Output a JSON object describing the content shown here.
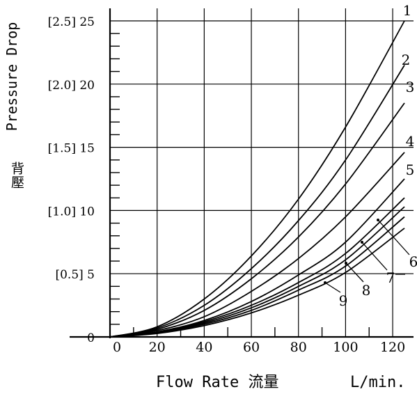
{
  "chart_data": {
    "type": "line",
    "ylabel": "Pressure Drop",
    "ylabel_cjk": "背壓",
    "xlabel": "Flow Rate 流量",
    "xunit": "L/min.",
    "xlim": [
      0,
      125
    ],
    "ylim": [
      0,
      25
    ],
    "xticks": [
      0,
      20,
      40,
      60,
      80,
      100,
      120
    ],
    "yticks": [
      {
        "value": 0,
        "label": "0"
      },
      {
        "value": 5,
        "label": "[0.5] 5"
      },
      {
        "value": 10,
        "label": "[1.0] 10"
      },
      {
        "value": 15,
        "label": "[1.5] 15"
      },
      {
        "value": 20,
        "label": "[2.0] 20"
      },
      {
        "value": 25,
        "label": "[2.5] 25"
      }
    ],
    "series": [
      {
        "name": "1",
        "x": [
          0,
          20,
          40,
          60,
          80,
          100,
          125
        ],
        "y": [
          0,
          0.8,
          3.0,
          6.4,
          10.9,
          16.6,
          25.0
        ]
      },
      {
        "name": "2",
        "x": [
          0,
          20,
          40,
          60,
          80,
          100,
          125
        ],
        "y": [
          0,
          0.7,
          2.5,
          5.4,
          9.2,
          14.0,
          21.5
        ]
      },
      {
        "name": "3",
        "x": [
          0,
          20,
          40,
          60,
          80,
          100,
          125
        ],
        "y": [
          0,
          0.6,
          2.1,
          4.6,
          7.9,
          12.1,
          18.5
        ]
      },
      {
        "name": "4",
        "x": [
          0,
          20,
          40,
          60,
          80,
          100,
          125
        ],
        "y": [
          0,
          0.5,
          1.6,
          3.6,
          6.2,
          9.5,
          14.6
        ]
      },
      {
        "name": "5",
        "x": [
          0,
          20,
          40,
          60,
          80,
          100,
          125
        ],
        "y": [
          0,
          0.4,
          1.3,
          2.8,
          4.9,
          7.5,
          12.5
        ]
      },
      {
        "name": "6",
        "x": [
          0,
          20,
          40,
          60,
          80,
          100,
          125
        ],
        "y": [
          0,
          0.36,
          1.2,
          2.5,
          4.3,
          6.6,
          11.0
        ]
      },
      {
        "name": "7",
        "x": [
          0,
          20,
          40,
          60,
          80,
          100,
          125
        ],
        "y": [
          0,
          0.33,
          1.1,
          2.3,
          4.0,
          6.1,
          10.3
        ]
      },
      {
        "name": "8",
        "x": [
          0,
          20,
          40,
          60,
          80,
          100,
          125
        ],
        "y": [
          0,
          0.3,
          1.0,
          2.1,
          3.7,
          5.6,
          9.5
        ]
      },
      {
        "name": "9",
        "x": [
          0,
          20,
          40,
          60,
          80,
          100,
          125
        ],
        "y": [
          0,
          0.27,
          0.9,
          1.9,
          3.3,
          5.1,
          8.6
        ]
      }
    ]
  }
}
